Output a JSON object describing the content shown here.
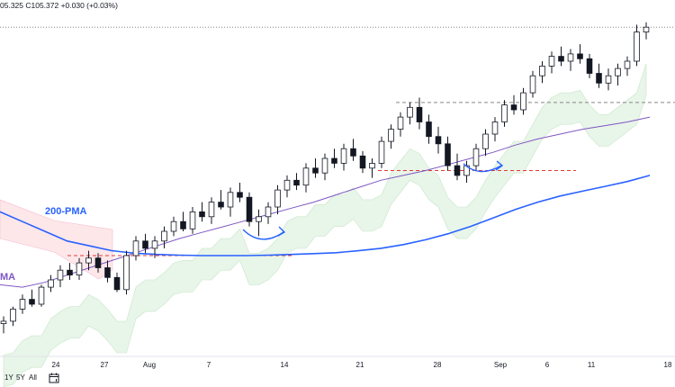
{
  "header": {
    "ohlc_text": "05.325  C105.372  +0.030 (+0.03%)"
  },
  "range_buttons": [
    "1Y",
    "5Y",
    "All"
  ],
  "icons": {
    "calendar": "calendar-icon"
  },
  "colors": {
    "bull": "#131722",
    "bear": "#131722",
    "pma200": "#2962ff",
    "pma50": "#7e57c2",
    "pma_fast": "#9575cd",
    "cloud_green": "#e8f5e9",
    "cloud_red": "#fde7e9",
    "level_red": "#e53935",
    "level_grey": "#888888",
    "arrow": "#2962ff"
  },
  "chart_data": {
    "type": "candlestick",
    "x_ticks": [
      "24",
      "27",
      "Aug",
      "7",
      "14",
      "21",
      "28",
      "Sep",
      "6",
      "11",
      "18"
    ],
    "ylim": [
      92,
      106
    ],
    "annotations": [
      "200-PMA",
      "MA"
    ],
    "series": [
      {
        "name": "200-PMA",
        "values": [
          97.8,
          97.4,
          97.0,
          96.6,
          96.4,
          96.2,
          96.1,
          96.05,
          96.02,
          96.0,
          96.0,
          96.0,
          96.02,
          96.05,
          96.08,
          96.12,
          96.2,
          96.3,
          96.45,
          96.65,
          96.9,
          97.2,
          97.55,
          97.9,
          98.2,
          98.45,
          98.65,
          98.85,
          99.05,
          99.3
        ]
      },
      {
        "name": "MA",
        "values": [
          94.8,
          94.7,
          94.9,
          95.2,
          95.5,
          95.8,
          96.1,
          96.4,
          96.7,
          96.95,
          97.2,
          97.45,
          97.7,
          97.95,
          98.2,
          98.5,
          98.8,
          99.1,
          99.3,
          99.5,
          99.75,
          100.0,
          100.25,
          100.55,
          100.8,
          101.0,
          101.2,
          101.35,
          101.5,
          101.7
        ]
      }
    ],
    "candles": [
      [
        93.2,
        93.5,
        92.8,
        93.3
      ],
      [
        93.3,
        93.9,
        93.1,
        93.8
      ],
      [
        93.8,
        94.4,
        93.6,
        94.2
      ],
      [
        94.2,
        94.6,
        93.9,
        94.0
      ],
      [
        94.0,
        94.8,
        93.9,
        94.7
      ],
      [
        94.7,
        95.2,
        94.5,
        95.0
      ],
      [
        95.0,
        95.6,
        94.7,
        95.4
      ],
      [
        95.4,
        95.7,
        95.0,
        95.2
      ],
      [
        95.2,
        95.9,
        95.0,
        95.7
      ],
      [
        95.7,
        96.2,
        95.4,
        95.9
      ],
      [
        95.9,
        96.1,
        95.3,
        95.5
      ],
      [
        95.5,
        95.8,
        94.9,
        95.1
      ],
      [
        95.1,
        95.3,
        94.5,
        94.6
      ],
      [
        94.6,
        96.2,
        94.4,
        96.0
      ],
      [
        96.0,
        96.8,
        95.8,
        96.6
      ],
      [
        96.6,
        96.9,
        96.1,
        96.3
      ],
      [
        96.3,
        96.8,
        95.9,
        96.6
      ],
      [
        96.6,
        97.2,
        96.3,
        97.0
      ],
      [
        97.0,
        97.6,
        96.8,
        97.4
      ],
      [
        97.4,
        97.8,
        97.0,
        97.1
      ],
      [
        97.1,
        98.0,
        96.9,
        97.8
      ],
      [
        97.8,
        98.2,
        97.4,
        97.6
      ],
      [
        97.6,
        98.4,
        97.3,
        98.2
      ],
      [
        98.2,
        98.7,
        97.9,
        98.0
      ],
      [
        98.0,
        98.8,
        97.6,
        98.6
      ],
      [
        98.6,
        99.0,
        98.2,
        98.4
      ],
      [
        98.4,
        98.6,
        97.2,
        97.4
      ],
      [
        97.4,
        97.9,
        96.8,
        97.6
      ],
      [
        97.6,
        98.2,
        97.3,
        98.0
      ],
      [
        98.0,
        98.9,
        97.7,
        98.7
      ],
      [
        98.7,
        99.3,
        98.4,
        99.1
      ],
      [
        99.1,
        99.4,
        98.7,
        98.9
      ],
      [
        98.9,
        99.8,
        98.6,
        99.6
      ],
      [
        99.6,
        100.0,
        99.2,
        99.4
      ],
      [
        99.4,
        100.2,
        99.1,
        100.0
      ],
      [
        100.0,
        100.4,
        99.6,
        99.8
      ],
      [
        99.8,
        100.6,
        99.5,
        100.4
      ],
      [
        100.4,
        100.8,
        99.9,
        100.1
      ],
      [
        100.1,
        100.3,
        99.4,
        99.6
      ],
      [
        99.6,
        100.0,
        99.2,
        99.8
      ],
      [
        99.8,
        100.9,
        99.6,
        100.7
      ],
      [
        100.7,
        101.4,
        100.4,
        101.2
      ],
      [
        101.2,
        101.9,
        100.9,
        101.7
      ],
      [
        101.7,
        102.3,
        101.4,
        102.1
      ],
      [
        102.1,
        102.5,
        101.2,
        101.5
      ],
      [
        101.5,
        101.8,
        100.6,
        100.9
      ],
      [
        100.9,
        101.3,
        100.2,
        100.6
      ],
      [
        100.6,
        100.9,
        99.5,
        99.7
      ],
      [
        99.7,
        100.2,
        99.1,
        99.3
      ],
      [
        99.3,
        99.9,
        99.0,
        99.7
      ],
      [
        99.7,
        100.6,
        99.5,
        100.4
      ],
      [
        100.4,
        101.2,
        100.1,
        101.0
      ],
      [
        101.0,
        101.7,
        100.7,
        101.5
      ],
      [
        101.5,
        102.4,
        101.3,
        102.2
      ],
      [
        102.2,
        102.6,
        101.8,
        102.0
      ],
      [
        102.0,
        102.9,
        101.8,
        102.7
      ],
      [
        102.7,
        103.6,
        102.5,
        103.4
      ],
      [
        103.4,
        104.0,
        103.1,
        103.8
      ],
      [
        103.8,
        104.4,
        103.5,
        104.2
      ],
      [
        104.2,
        104.6,
        103.8,
        104.0
      ],
      [
        104.0,
        104.5,
        103.6,
        104.3
      ],
      [
        104.3,
        104.7,
        103.9,
        104.1
      ],
      [
        104.1,
        104.3,
        103.3,
        103.5
      ],
      [
        103.5,
        103.9,
        102.9,
        103.1
      ],
      [
        103.1,
        103.7,
        102.8,
        103.4
      ],
      [
        103.4,
        103.9,
        103.0,
        103.7
      ],
      [
        103.7,
        104.2,
        103.4,
        104.0
      ],
      [
        104.0,
        105.5,
        103.8,
        105.2
      ],
      [
        105.2,
        105.6,
        104.9,
        105.4
      ]
    ],
    "levels": [
      {
        "y": 96.0,
        "style": "red-dashed"
      },
      {
        "y": 99.5,
        "style": "red-dashed"
      },
      {
        "y": 102.3,
        "style": "grey-dashed"
      },
      {
        "y": 105.4,
        "style": "grey-dotted"
      }
    ]
  }
}
